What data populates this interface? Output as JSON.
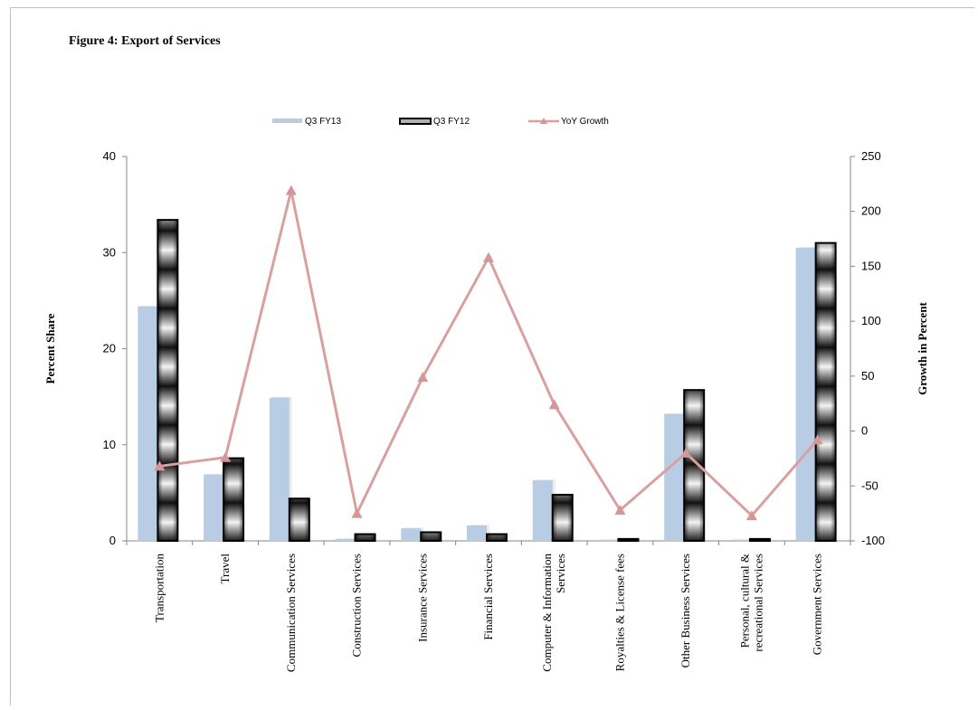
{
  "chart_data": {
    "type": "bar",
    "title": "Figure 4: Export of Services",
    "categories": [
      [
        "Transportation"
      ],
      [
        "Travel"
      ],
      [
        "Communication Services"
      ],
      [
        "Construction Services"
      ],
      [
        "Insurance Services"
      ],
      [
        "Financial Services"
      ],
      [
        "Computer & Information",
        "Services"
      ],
      [
        "Royalties & License fees"
      ],
      [
        "Other Business Services"
      ],
      [
        "Personal, cultural &",
        "recreational Services"
      ],
      [
        "Government Services"
      ]
    ],
    "series": [
      {
        "name": "Q3 FY13",
        "axis": "left",
        "kind": "bar",
        "color": "#b8cce4",
        "values": [
          24.4,
          6.9,
          14.9,
          0.2,
          1.3,
          1.6,
          6.3,
          0.1,
          13.2,
          0.1,
          30.5
        ]
      },
      {
        "name": "Q3 FY12",
        "axis": "left",
        "kind": "bar",
        "color": "#404040",
        "values": [
          33.4,
          8.6,
          4.4,
          0.7,
          0.9,
          0.7,
          4.8,
          0.2,
          15.7,
          0.2,
          31.0
        ]
      },
      {
        "name": "YoY Growth",
        "axis": "right",
        "kind": "line",
        "color": "#d9a0a0",
        "values": [
          -32,
          -24,
          219,
          -75,
          49,
          158,
          24,
          -72,
          -20,
          -77,
          -8
        ]
      }
    ],
    "ylabel": "Percent Share",
    "y2label": "Growth in Percent",
    "ylim": [
      0,
      40
    ],
    "yticks": [
      0,
      10,
      20,
      30,
      40
    ],
    "y2lim": [
      -100,
      250
    ],
    "y2ticks": [
      -100,
      -50,
      0,
      50,
      100,
      150,
      200,
      250
    ],
    "legend_position": "top"
  }
}
